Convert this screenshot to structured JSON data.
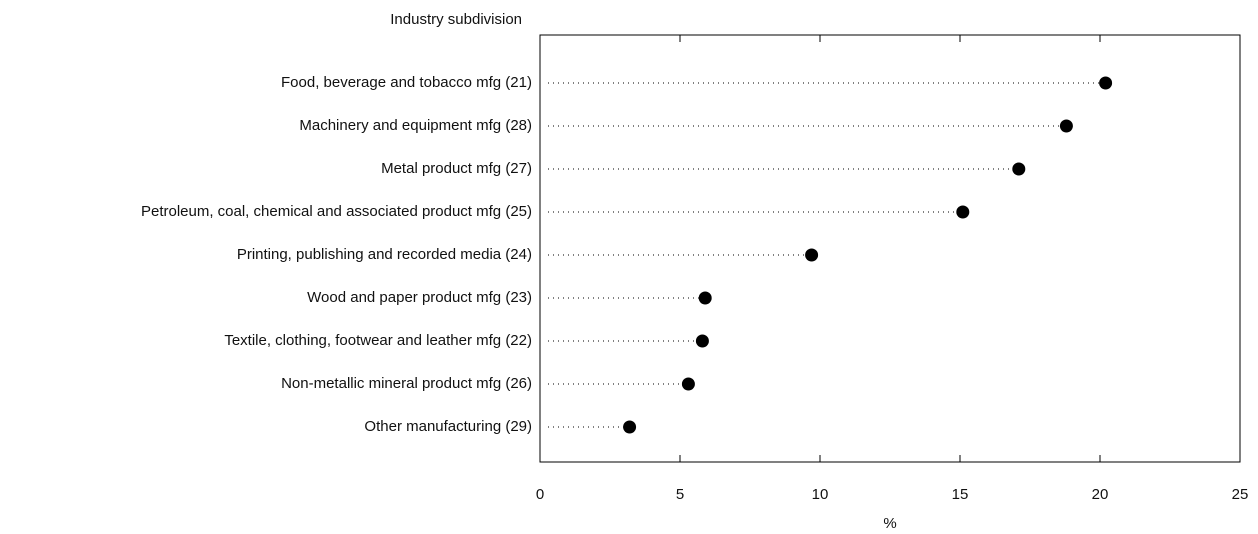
{
  "chart_data": {
    "type": "dot",
    "ylabel": "Industry subdivision",
    "xlabel": "%",
    "categories": [
      "Food, beverage and tobacco mfg (21)",
      "Machinery and equipment mfg (28)",
      "Metal product mfg (27)",
      "Petroleum, coal, chemical and associated product mfg (25)",
      "Printing, publishing and recorded media (24)",
      "Wood and paper product mfg (23)",
      "Textile, clothing, footwear and leather mfg (22)",
      "Non-metallic mineral product mfg (26)",
      "Other manufacturing (29)"
    ],
    "values": [
      20.2,
      18.8,
      17.1,
      15.1,
      9.7,
      5.9,
      5.8,
      5.3,
      3.2
    ],
    "color": "#000000",
    "xlim": [
      0,
      25
    ],
    "xticks": [
      0,
      5,
      10,
      15,
      20,
      25
    ]
  }
}
